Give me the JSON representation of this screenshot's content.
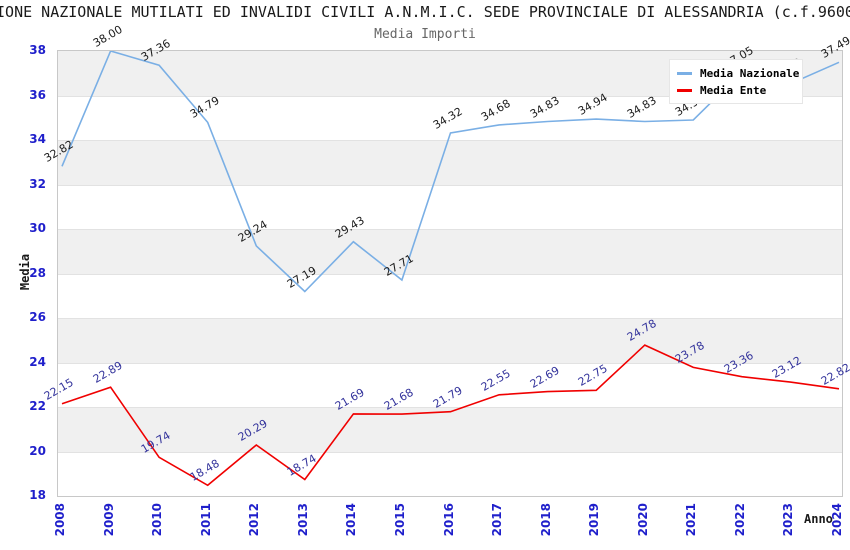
{
  "header": {
    "title_visible_text": "IONE NAZIONALE MUTILATI ED INVALIDI CIVILI A.N.M.I.C. SEDE PROVINCIALE DI ALESSANDRIA (c.f.9600",
    "subtitle": "Media Importi"
  },
  "chart_data": {
    "type": "line",
    "title": "Media Importi",
    "xlabel": "Anno",
    "ylabel": "Media",
    "x": [
      "2008",
      "2009",
      "2010",
      "2011",
      "2012",
      "2013",
      "2014",
      "2015",
      "2016",
      "2017",
      "2018",
      "2019",
      "2020",
      "2021",
      "2022",
      "2023",
      "2024"
    ],
    "ylim": [
      18,
      38
    ],
    "ytick_step": 2,
    "grid": "alternating horizontal gray/white bands every 2 units",
    "legend_position": "top-right",
    "series": [
      {
        "name": "Media Nazionale",
        "color": "#7AAFE5",
        "label_color": "#1A1A1A",
        "values": [
          32.82,
          38.0,
          37.36,
          34.79,
          29.24,
          27.19,
          29.43,
          27.71,
          34.32,
          34.68,
          34.83,
          34.94,
          34.83,
          34.9,
          37.05,
          36.53,
          37.49
        ],
        "label_partially_hidden_by_legend_indices": [
          13
        ],
        "label_fully_hidden_by_legend_indices": [
          15
        ]
      },
      {
        "name": "Media Ente",
        "color": "#F00000",
        "label_color": "#32329B",
        "values": [
          22.15,
          22.89,
          19.74,
          18.48,
          20.29,
          18.74,
          21.69,
          21.68,
          21.79,
          22.55,
          22.69,
          22.75,
          24.78,
          23.78,
          23.36,
          23.12,
          22.82
        ]
      }
    ]
  },
  "colors": {
    "tick_label": "#1F1FCB",
    "band": "#F0F0F0",
    "gridline": "#E2E2E2",
    "plot_border": "#C8C8C8",
    "title": "#1A1A1A",
    "subtitle": "#666666"
  }
}
